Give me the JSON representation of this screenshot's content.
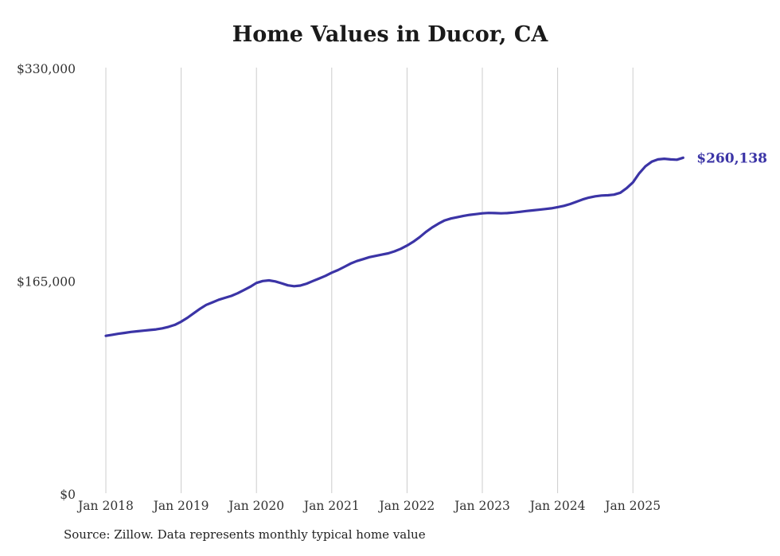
{
  "title": "Home Values in Ducor, CA",
  "source": "Source: Zillow. Data represents monthly typical home value",
  "end_label": "$260,138",
  "colors": {
    "line": "#3b34a6",
    "grid": "#cccccc",
    "axis_text": "#333333",
    "end_label": "#3b34a6",
    "title_text": "#1a1a1a"
  },
  "chart_data": {
    "type": "line",
    "title": "Home Values in Ducor, CA",
    "x_start": "Jan 2018",
    "x_end": "Sep 2025",
    "x_frequency": "monthly",
    "ylim": [
      0,
      330000
    ],
    "grid": "vertical-only",
    "legend": "none",
    "last_value": 260138,
    "last_value_label": "$260,138",
    "yticks": [
      {
        "value": 0,
        "label": "$0"
      },
      {
        "value": 165000,
        "label": "$165,000"
      },
      {
        "value": 330000,
        "label": "$330,000"
      }
    ],
    "xticks": [
      {
        "index": 0,
        "label": "Jan 2018"
      },
      {
        "index": 12,
        "label": "Jan 2019"
      },
      {
        "index": 24,
        "label": "Jan 2020"
      },
      {
        "index": 36,
        "label": "Jan 2021"
      },
      {
        "index": 48,
        "label": "Jan 2022"
      },
      {
        "index": 60,
        "label": "Jan 2023"
      },
      {
        "index": 72,
        "label": "Jan 2024"
      },
      {
        "index": 84,
        "label": "Jan 2025"
      }
    ],
    "values": [
      122000,
      122800,
      123600,
      124300,
      125000,
      125500,
      126000,
      126500,
      127000,
      127800,
      129000,
      130500,
      133000,
      136000,
      139500,
      143000,
      146000,
      148000,
      150000,
      151500,
      153000,
      155000,
      157500,
      160000,
      163000,
      164500,
      165000,
      164200,
      162800,
      161200,
      160500,
      161000,
      162500,
      164500,
      166500,
      168500,
      171000,
      173000,
      175500,
      178000,
      180000,
      181500,
      183000,
      184000,
      185000,
      186000,
      187500,
      189500,
      192000,
      195000,
      198500,
      202500,
      206000,
      209000,
      211500,
      213000,
      214000,
      215000,
      215800,
      216400,
      217000,
      217300,
      217200,
      217000,
      217200,
      217600,
      218200,
      218800,
      219300,
      219800,
      220300,
      220900,
      221800,
      222800,
      224200,
      226000,
      227800,
      229200,
      230200,
      230800,
      231000,
      231500,
      233000,
      236500,
      241000,
      248000,
      253500,
      257000,
      258800,
      259300,
      258800,
      258600,
      260138
    ]
  }
}
